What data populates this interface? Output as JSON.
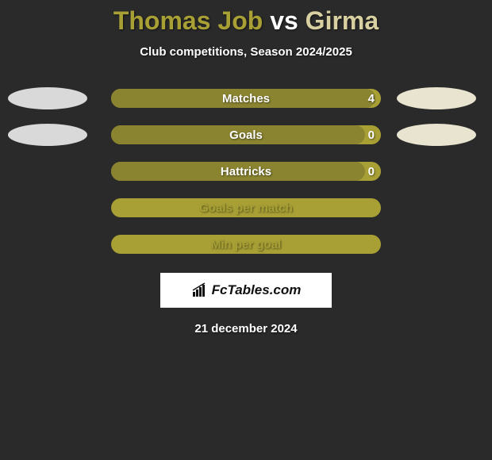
{
  "title": {
    "player1": "Thomas Job",
    "vs": " vs ",
    "player2": "Girma",
    "player1_color": "#a8a035",
    "vs_color": "#ffffff",
    "player2_color": "#d8d0a0"
  },
  "subtitle": "Club competitions, Season 2024/2025",
  "date": "21 december 2024",
  "background_color": "#2a2a2a",
  "site": "FcTables.com",
  "stats": [
    {
      "label": "Matches",
      "value": "4",
      "fill_pct": 98,
      "bar_fill": "#8a8431",
      "bar_bg": "#a8a035",
      "label_color": "#ffffff",
      "value_color": "#ffffff",
      "left_ellipse": "#d9d9d9",
      "right_ellipse": "#e8e4d0"
    },
    {
      "label": "Goals",
      "value": "0",
      "fill_pct": 94,
      "bar_fill": "#8a8431",
      "bar_bg": "#a8a035",
      "label_color": "#ffffff",
      "value_color": "#ffffff",
      "left_ellipse": "#d9d9d9",
      "right_ellipse": "#e8e4d0"
    },
    {
      "label": "Hattricks",
      "value": "0",
      "fill_pct": 94,
      "bar_fill": "#8a8431",
      "bar_bg": "#a8a035",
      "label_color": "#ffffff",
      "value_color": "#ffffff",
      "left_ellipse": null,
      "right_ellipse": null
    },
    {
      "label": "Goals per match",
      "value": "",
      "fill_pct": 0,
      "bar_fill": "#8a8431",
      "bar_bg": "#a8a035",
      "label_color": "#a8a035",
      "value_color": "#ffffff",
      "left_ellipse": null,
      "right_ellipse": null
    },
    {
      "label": "Min per goal",
      "value": "",
      "fill_pct": 0,
      "bar_fill": "#8a8431",
      "bar_bg": "#a8a035",
      "label_color": "#a8a035",
      "value_color": "#ffffff",
      "left_ellipse": null,
      "right_ellipse": null
    }
  ]
}
